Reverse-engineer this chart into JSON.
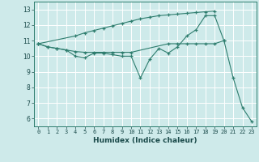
{
  "xlabel": "Humidex (Indice chaleur)",
  "xlim": [
    -0.5,
    23.5
  ],
  "ylim": [
    5.5,
    13.5
  ],
  "yticks": [
    6,
    7,
    8,
    9,
    10,
    11,
    12,
    13
  ],
  "xticks": [
    0,
    1,
    2,
    3,
    4,
    5,
    6,
    7,
    8,
    9,
    10,
    11,
    12,
    13,
    14,
    15,
    16,
    17,
    18,
    19,
    20,
    21,
    22,
    23
  ],
  "bg_color": "#ceeaea",
  "grid_color": "#b8d8d8",
  "line_color": "#2e7d6e",
  "series": [
    {
      "x": [
        0,
        1,
        2,
        3,
        4,
        5,
        6,
        7,
        8,
        9,
        10,
        11,
        12,
        13,
        14,
        15,
        16,
        17,
        18,
        19,
        20,
        21,
        22,
        23
      ],
      "y": [
        10.8,
        10.6,
        10.5,
        10.4,
        10.0,
        9.9,
        10.2,
        10.2,
        10.1,
        10.0,
        10.0,
        8.6,
        9.8,
        10.5,
        10.2,
        10.6,
        11.3,
        11.7,
        12.6,
        12.6,
        11.0,
        8.6,
        6.7,
        5.8
      ]
    },
    {
      "x": [
        0,
        1,
        2,
        3,
        4,
        5,
        6,
        7,
        8,
        9,
        10,
        14,
        15,
        16,
        17,
        18,
        19,
        20
      ],
      "y": [
        10.8,
        10.6,
        10.5,
        10.4,
        10.3,
        10.25,
        10.25,
        10.25,
        10.25,
        10.25,
        10.25,
        10.8,
        10.8,
        10.8,
        10.8,
        10.8,
        10.8,
        11.0
      ]
    },
    {
      "x": [
        0,
        4,
        5,
        6,
        7,
        8,
        9,
        10,
        11,
        12,
        13,
        14,
        15,
        16,
        17,
        18,
        19
      ],
      "y": [
        10.8,
        11.3,
        11.5,
        11.65,
        11.8,
        11.95,
        12.1,
        12.25,
        12.4,
        12.5,
        12.6,
        12.65,
        12.7,
        12.75,
        12.8,
        12.85,
        12.9
      ]
    }
  ]
}
